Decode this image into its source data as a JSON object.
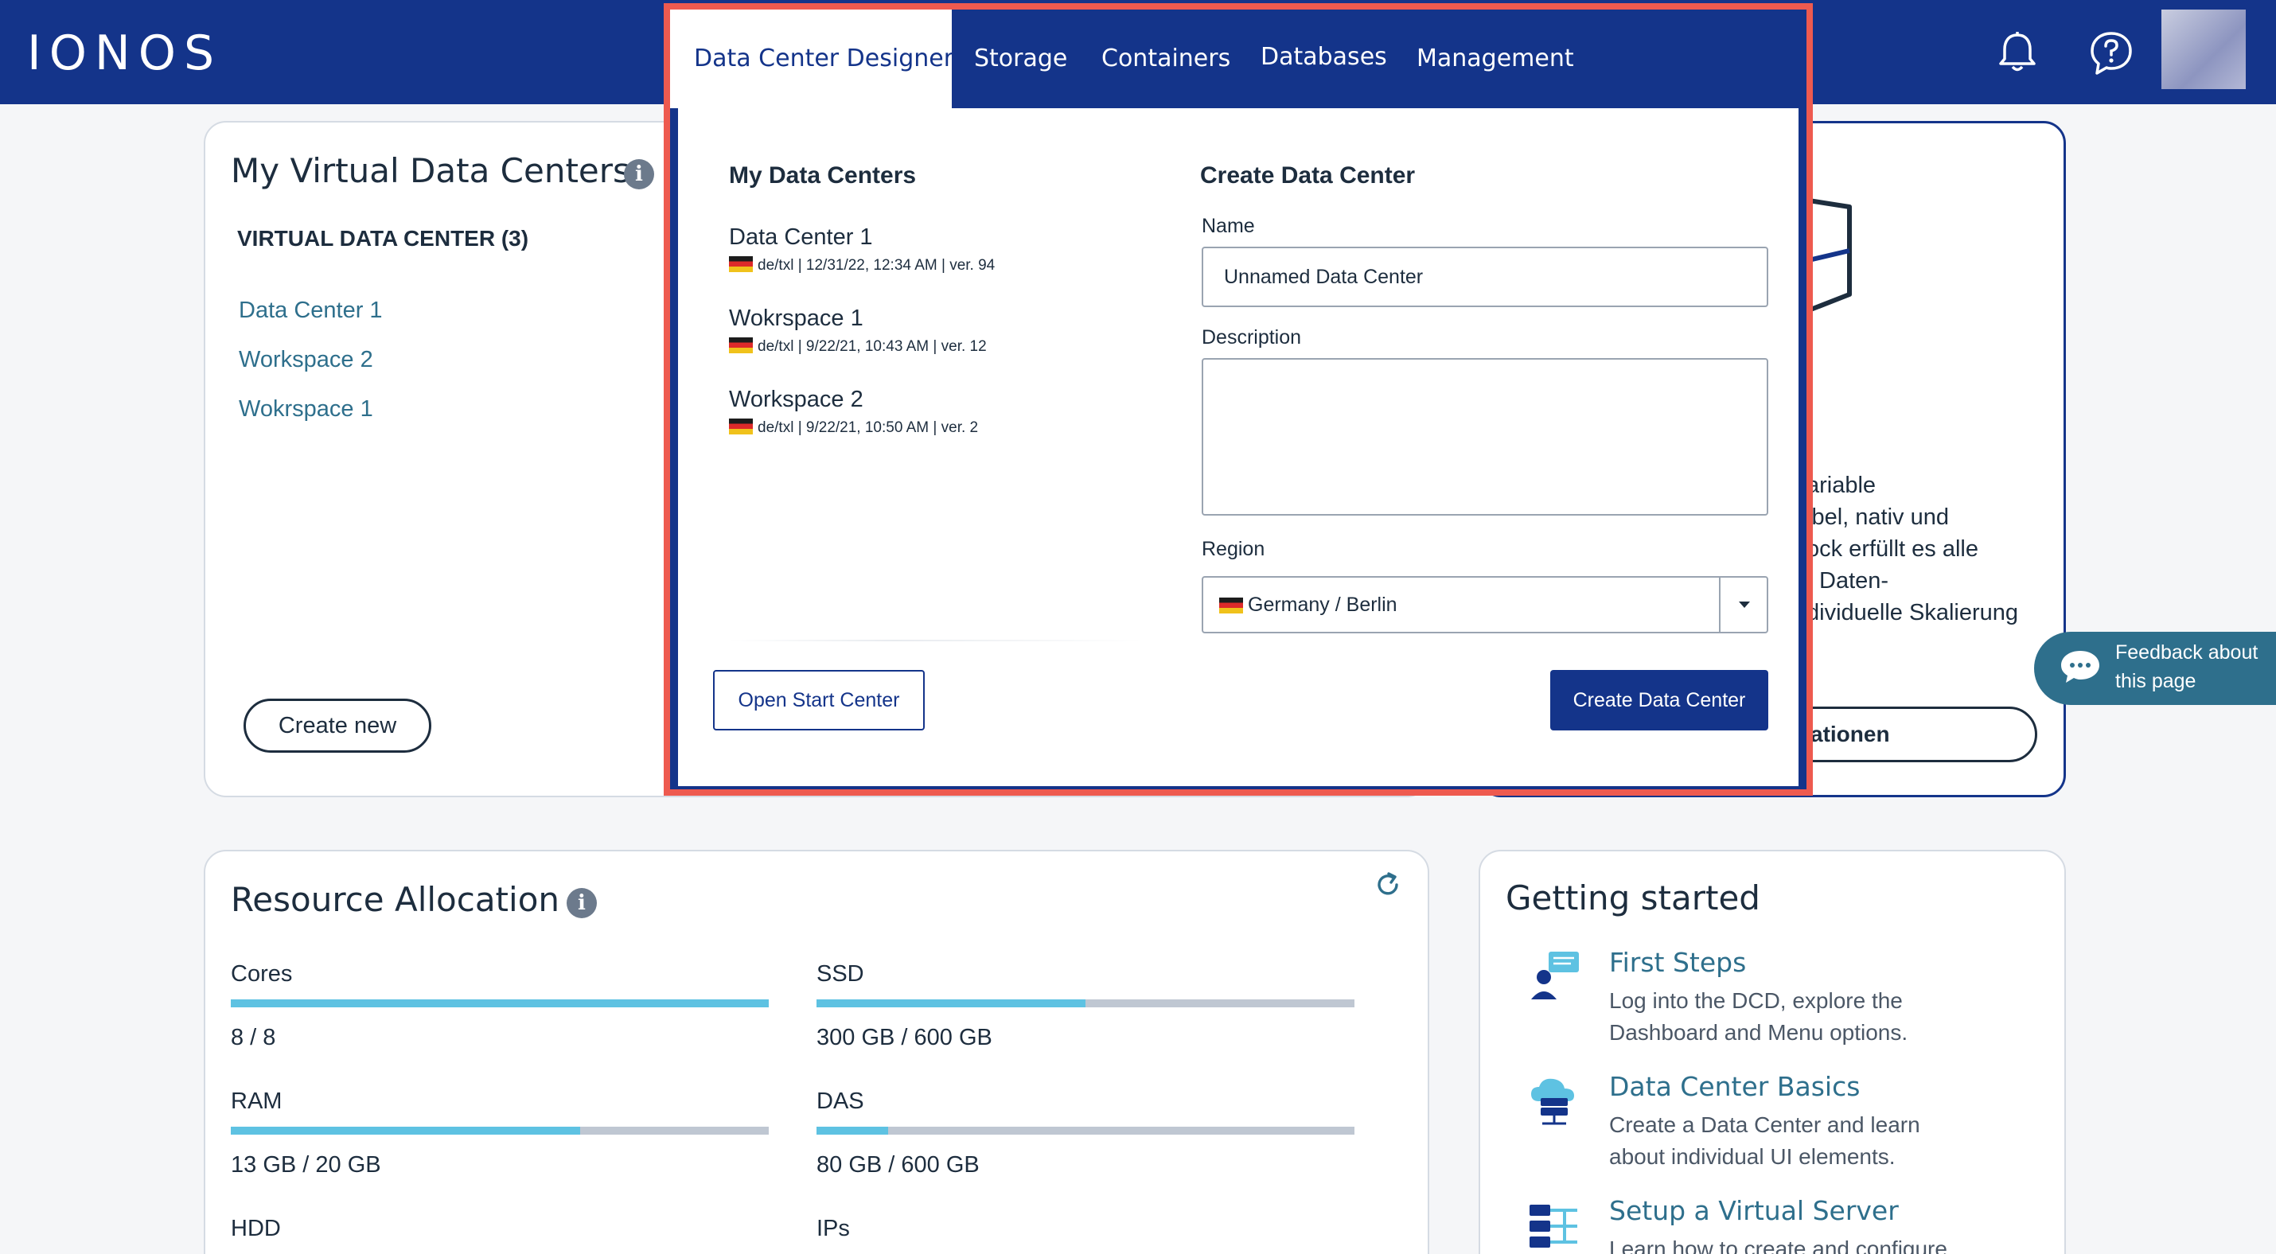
{
  "header": {
    "logo": "IONOS",
    "notifications_icon": "bell-icon",
    "help_icon": "help-chat-icon"
  },
  "vdc_card": {
    "title": "My Virtual Data Centers",
    "subtitle": "VIRTUAL DATA CENTER (3)",
    "items": [
      "Data Center 1",
      "Workspace 2",
      "Wokrspace 1"
    ],
    "create_button": "Create new"
  },
  "promo_card": {
    "text_lines": [
      "ariable",
      "ibel, nativ und",
      "ock erfüllt es alle",
      "Daten-",
      "dividuelle Skalierung"
    ],
    "button": "ationen"
  },
  "resources": {
    "title": "Resource Allocation",
    "items": [
      {
        "label": "Cores",
        "value": "8 / 8",
        "fraction": 1.0
      },
      {
        "label": "SSD",
        "value": "300 GB / 600 GB",
        "fraction": 0.5
      },
      {
        "label": "RAM",
        "value": "13 GB / 20 GB",
        "fraction": 0.65
      },
      {
        "label": "DAS",
        "value": "80 GB / 600 GB",
        "fraction": 0.133
      },
      {
        "label": "HDD",
        "value": "",
        "fraction": null
      },
      {
        "label": "IPs",
        "value": "",
        "fraction": null
      }
    ]
  },
  "getting_started": {
    "title": "Getting started",
    "items": [
      {
        "title": "First Steps",
        "lines": [
          "Log into the DCD, explore the",
          "Dashboard and Menu options."
        ]
      },
      {
        "title": "Data Center Basics",
        "lines": [
          "Create a Data Center and learn",
          "about individual UI elements."
        ]
      },
      {
        "title": "Setup a Virtual Server",
        "lines": [
          "Learn how to create and configure"
        ]
      }
    ]
  },
  "feedback": {
    "line1": "Feedback about",
    "line2": "this page"
  },
  "modal": {
    "tabs": [
      "Data Center Designer",
      "Storage",
      "Containers",
      "Databases",
      "Management"
    ],
    "my_dc_heading": "My Data Centers",
    "data_centers": [
      {
        "name": "Data Center 1",
        "meta": "de/txl | 12/31/22, 12:34 AM | ver. 94"
      },
      {
        "name": "Wokrspace 1",
        "meta": "de/txl | 9/22/21, 10:43 AM | ver. 12"
      },
      {
        "name": "Workspace 2",
        "meta": "de/txl | 9/22/21, 10:50 AM | ver. 2"
      }
    ],
    "create_heading": "Create Data Center",
    "name_label": "Name",
    "name_value": "Unnamed Data Center",
    "description_label": "Description",
    "description_value": "",
    "region_label": "Region",
    "region_value": "Germany / Berlin",
    "open_start_center": "Open Start Center",
    "create_button": "Create Data Center"
  }
}
